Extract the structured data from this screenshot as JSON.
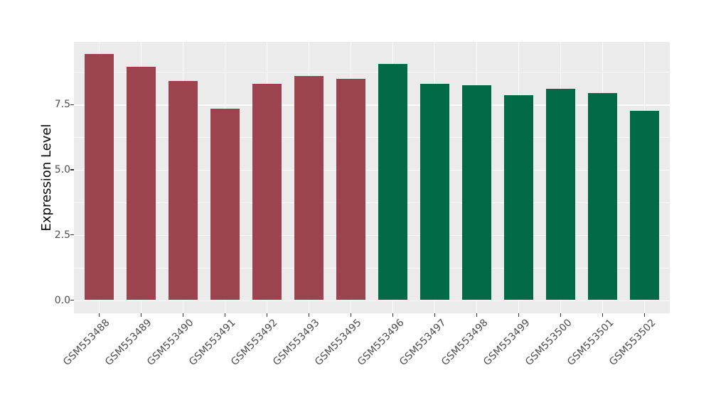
{
  "figure": {
    "background": "#FFFFFF"
  },
  "chart_data": {
    "type": "bar",
    "title": "",
    "xlabel": "",
    "ylabel": "Expression Level",
    "categories": [
      "GSM553488",
      "GSM553489",
      "GSM553490",
      "GSM553491",
      "GSM553492",
      "GSM553493",
      "GSM553495",
      "GSM553496",
      "GSM553497",
      "GSM553498",
      "GSM553499",
      "GSM553500",
      "GSM553501",
      "GSM553502"
    ],
    "values": [
      9.45,
      8.95,
      8.4,
      7.35,
      8.3,
      8.6,
      8.5,
      9.05,
      8.3,
      8.25,
      7.85,
      8.1,
      7.95,
      7.25
    ],
    "bar_colors": [
      "#9B4450",
      "#9B4450",
      "#9B4450",
      "#9B4450",
      "#9B4450",
      "#9B4450",
      "#9B4450",
      "#006946",
      "#006946",
      "#006946",
      "#006946",
      "#006946",
      "#006946",
      "#006946"
    ],
    "group_colors": {
      "left_group": "#9B4450",
      "right_group": "#006946"
    },
    "left_group_count": 7,
    "y_ticks": [
      0,
      2.5,
      5,
      7.5
    ],
    "y_tick_labels": [
      "0.0",
      "2.5",
      "5.0",
      "7.5"
    ],
    "y_minor_ticks": [
      1.25,
      3.75,
      6.25,
      8.75
    ],
    "ylim": [
      0,
      9.9
    ],
    "x_label_rotation": -45,
    "grid": true,
    "legend": "none",
    "panel_bg": "#EBEBEB",
    "grid_color": "#FFFFFF",
    "tick_mark_color": "#333333",
    "axis_text_color": "#4D4D4D",
    "axis_title_color": "#000000"
  }
}
